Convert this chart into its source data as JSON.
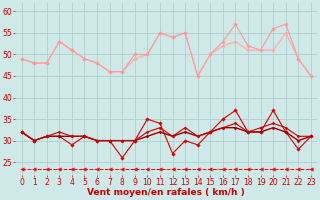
{
  "background_color": "#cfe8e8",
  "grid_color": "#b0d0cc",
  "xlabel": "Vent moyen/en rafales ( km/h )",
  "xlabel_color": "#cc0000",
  "xlabel_fontsize": 6.5,
  "tick_color": "#cc0000",
  "tick_fontsize": 5.5,
  "ylim": [
    22,
    62
  ],
  "xlim": [
    -0.5,
    23.5
  ],
  "yticks": [
    25,
    30,
    35,
    40,
    45,
    50,
    55,
    60
  ],
  "xticks": [
    0,
    1,
    2,
    3,
    4,
    5,
    6,
    7,
    8,
    9,
    10,
    11,
    12,
    13,
    14,
    15,
    16,
    17,
    18,
    19,
    20,
    21,
    22,
    23
  ],
  "series": [
    {
      "y": [
        49,
        48,
        48,
        53,
        51,
        49,
        48,
        46,
        46,
        49,
        50,
        55,
        54,
        55,
        45,
        50,
        52,
        53,
        51,
        51,
        51,
        55,
        49,
        45
      ],
      "color": "#ffaaaa",
      "lw": 0.8,
      "marker": "D",
      "ms": 1.8
    },
    {
      "y": [
        49,
        48,
        48,
        53,
        51,
        49,
        48,
        46,
        46,
        50,
        50,
        55,
        54,
        55,
        45,
        50,
        53,
        57,
        52,
        51,
        56,
        57,
        49,
        45
      ],
      "color": "#ff9999",
      "lw": 0.8,
      "marker": "D",
      "ms": 1.8
    },
    {
      "y": [
        32,
        30,
        31,
        31,
        29,
        31,
        30,
        30,
        26,
        30,
        35,
        34,
        27,
        30,
        29,
        32,
        35,
        37,
        32,
        32,
        37,
        32,
        28,
        31
      ],
      "color": "#dd0000",
      "lw": 0.8,
      "marker": "D",
      "ms": 1.8
    },
    {
      "y": [
        32,
        30,
        31,
        31,
        31,
        31,
        30,
        30,
        30,
        30,
        31,
        32,
        31,
        32,
        31,
        32,
        33,
        33,
        32,
        32,
        33,
        32,
        30,
        31
      ],
      "color": "#990000",
      "lw": 1.0,
      "marker": "D",
      "ms": 1.5
    },
    {
      "y": [
        32,
        30,
        31,
        32,
        31,
        31,
        30,
        30,
        30,
        30,
        32,
        33,
        31,
        33,
        31,
        32,
        33,
        34,
        32,
        33,
        34,
        33,
        31,
        31
      ],
      "color": "#cc0000",
      "lw": 0.8,
      "marker": "D",
      "ms": 1.5
    },
    {
      "y": [
        23.5,
        23.5,
        23.5,
        23.5,
        23.5,
        23.5,
        23.5,
        23.5,
        23.5,
        23.5,
        23.5,
        23.5,
        23.5,
        23.5,
        23.5,
        23.5,
        23.5,
        23.5,
        23.5,
        23.5,
        23.5,
        23.5,
        23.5,
        23.5
      ],
      "color": "#ff0000",
      "lw": 0.7,
      "marker": "<",
      "ms": 2.5,
      "linestyle": "--"
    }
  ]
}
